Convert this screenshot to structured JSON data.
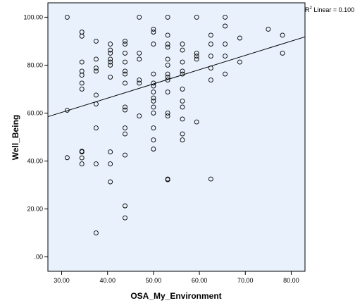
{
  "chart_data": {
    "type": "scatter",
    "xlabel": "OSA_My_Environment",
    "ylabel": "Well_Being",
    "xlim": [
      27,
      83
    ],
    "ylim": [
      -6,
      106
    ],
    "x_ticks": [
      30,
      40,
      50,
      60,
      70,
      80
    ],
    "x_tick_labels": [
      "30.00",
      "40.00",
      "50.00",
      "60.00",
      "70.00",
      "80.00"
    ],
    "y_ticks": [
      0,
      20,
      40,
      60,
      80,
      100
    ],
    "y_tick_labels": [
      ".00",
      "20.00",
      "40.00",
      "60.00",
      "80.00",
      "100.00"
    ],
    "grid": false,
    "fit_line": {
      "label_prefix": "R",
      "label_sup": "2",
      "label_suffix": " Linear = 0.100",
      "x": [
        27,
        83
      ],
      "y": [
        58.5,
        91.8
      ]
    },
    "colors": {
      "background": "#e8f1fc",
      "marker": "#000000",
      "line": "#000000"
    },
    "points": [
      [
        31.2,
        100
      ],
      [
        31.2,
        61.2
      ],
      [
        31.2,
        41.4
      ],
      [
        34.4,
        93.8
      ],
      [
        34.4,
        92.1
      ],
      [
        34.4,
        81.3
      ],
      [
        34.4,
        77.5
      ],
      [
        34.4,
        75.8
      ],
      [
        34.4,
        72.5
      ],
      [
        34.4,
        70.0
      ],
      [
        34.4,
        44.1
      ],
      [
        34.4,
        43.8
      ],
      [
        34.4,
        41.3
      ],
      [
        34.4,
        38.8
      ],
      [
        37.5,
        90.0
      ],
      [
        37.5,
        82.5
      ],
      [
        37.5,
        78.8
      ],
      [
        37.5,
        77.5
      ],
      [
        37.5,
        67.5
      ],
      [
        37.5,
        63.8
      ],
      [
        37.5,
        53.8
      ],
      [
        37.5,
        38.8
      ],
      [
        37.5,
        10.0
      ],
      [
        40.6,
        88.8
      ],
      [
        40.6,
        86.3
      ],
      [
        40.6,
        85.0
      ],
      [
        40.6,
        82.5
      ],
      [
        40.6,
        81.3
      ],
      [
        40.6,
        80.0
      ],
      [
        40.6,
        75.0
      ],
      [
        40.6,
        43.8
      ],
      [
        40.6,
        38.8
      ],
      [
        40.6,
        31.3
      ],
      [
        43.8,
        90.0
      ],
      [
        43.8,
        88.8
      ],
      [
        43.8,
        85.0
      ],
      [
        43.8,
        81.3
      ],
      [
        43.8,
        77.5
      ],
      [
        43.8,
        76.3
      ],
      [
        43.8,
        72.5
      ],
      [
        43.8,
        62.5
      ],
      [
        43.8,
        61.3
      ],
      [
        43.8,
        53.8
      ],
      [
        43.8,
        51.3
      ],
      [
        43.8,
        42.5
      ],
      [
        43.8,
        21.3
      ],
      [
        43.8,
        16.3
      ],
      [
        46.9,
        100
      ],
      [
        46.9,
        85.0
      ],
      [
        46.9,
        82.5
      ],
      [
        46.9,
        73.8
      ],
      [
        46.9,
        72.5
      ],
      [
        46.9,
        58.8
      ],
      [
        50.0,
        95.0
      ],
      [
        50.0,
        93.8
      ],
      [
        50.0,
        88.8
      ],
      [
        50.0,
        76.3
      ],
      [
        50.0,
        72.5
      ],
      [
        50.0,
        71.3
      ],
      [
        50.0,
        68.8
      ],
      [
        50.0,
        66.3
      ],
      [
        50.0,
        65.0
      ],
      [
        50.0,
        62.5
      ],
      [
        50.0,
        60.0
      ],
      [
        50.0,
        53.8
      ],
      [
        50.0,
        48.8
      ],
      [
        50.0,
        45.0
      ],
      [
        53.1,
        100
      ],
      [
        53.1,
        92.5
      ],
      [
        53.1,
        88.8
      ],
      [
        53.1,
        87.5
      ],
      [
        53.1,
        82.5
      ],
      [
        53.1,
        80.0
      ],
      [
        53.1,
        76.3
      ],
      [
        53.1,
        75.0
      ],
      [
        53.1,
        73.8
      ],
      [
        53.1,
        68.8
      ],
      [
        53.1,
        60.0
      ],
      [
        53.1,
        58.8
      ],
      [
        53.1,
        32.5
      ],
      [
        53.1,
        32.2
      ],
      [
        56.3,
        88.8
      ],
      [
        56.3,
        86.3
      ],
      [
        56.3,
        81.3
      ],
      [
        56.3,
        77.5
      ],
      [
        56.3,
        76.3
      ],
      [
        56.3,
        70.0
      ],
      [
        56.3,
        65.0
      ],
      [
        56.3,
        62.5
      ],
      [
        56.3,
        57.5
      ],
      [
        56.3,
        51.3
      ],
      [
        56.3,
        48.8
      ],
      [
        59.4,
        100
      ],
      [
        59.4,
        85.0
      ],
      [
        59.4,
        83.8
      ],
      [
        59.4,
        82.5
      ],
      [
        59.4,
        56.3
      ],
      [
        62.5,
        92.5
      ],
      [
        62.5,
        88.8
      ],
      [
        62.5,
        83.8
      ],
      [
        62.5,
        78.8
      ],
      [
        62.5,
        73.8
      ],
      [
        62.5,
        32.5
      ],
      [
        65.6,
        100
      ],
      [
        65.6,
        96.3
      ],
      [
        65.6,
        88.8
      ],
      [
        65.6,
        83.8
      ],
      [
        65.6,
        76.3
      ],
      [
        68.8,
        91.3
      ],
      [
        68.8,
        81.3
      ],
      [
        75.0,
        95.0
      ],
      [
        78.1,
        92.5
      ],
      [
        78.1,
        85.0
      ]
    ]
  }
}
